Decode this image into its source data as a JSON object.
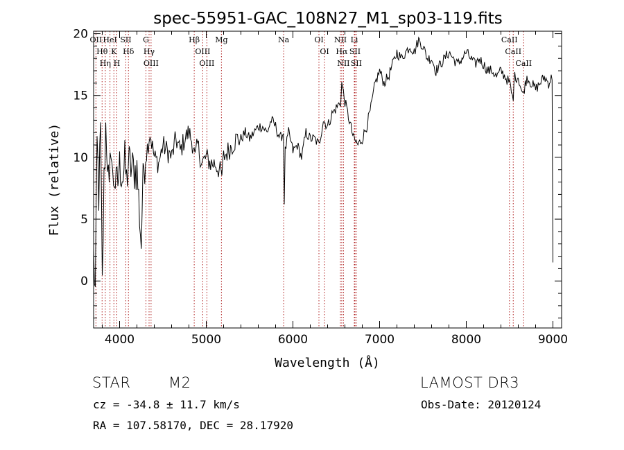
{
  "chart_data": {
    "type": "line",
    "title": "spec-55951-GAC_108N27_M1_sp03-119.fits",
    "xlabel": "Wavelength (Å)",
    "ylabel": "Flux (relative)",
    "xlim": [
      3700,
      9100
    ],
    "ylim": [
      -3.8,
      20.2
    ],
    "xticks": [
      4000,
      5000,
      6000,
      7000,
      8000,
      9000
    ],
    "yticks": [
      0,
      5,
      10,
      15,
      20
    ],
    "series": [
      {
        "name": "spectrum",
        "x": [
          3700,
          3720,
          3740,
          3760,
          3780,
          3800,
          3820,
          3840,
          3860,
          3880,
          3900,
          3920,
          3940,
          3960,
          3980,
          4000,
          4020,
          4040,
          4060,
          4080,
          4100,
          4150,
          4200,
          4250,
          4260,
          4280,
          4300,
          4350,
          4400,
          4450,
          4500,
          4550,
          4600,
          4650,
          4700,
          4750,
          4800,
          4850,
          4870,
          4900,
          4950,
          5000,
          5050,
          5100,
          5150,
          5180,
          5200,
          5250,
          5300,
          5350,
          5400,
          5450,
          5500,
          5550,
          5600,
          5650,
          5700,
          5750,
          5800,
          5850,
          5890,
          5900,
          5910,
          5950,
          6000,
          6050,
          6100,
          6150,
          6200,
          6250,
          6300,
          6350,
          6400,
          6450,
          6500,
          6550,
          6563,
          6600,
          6650,
          6700,
          6750,
          6800,
          6850,
          6900,
          6950,
          7000,
          7050,
          7100,
          7150,
          7200,
          7250,
          7300,
          7350,
          7400,
          7450,
          7500,
          7550,
          7600,
          7650,
          7700,
          7750,
          7800,
          7850,
          7900,
          7950,
          8000,
          8050,
          8100,
          8150,
          8200,
          8250,
          8300,
          8350,
          8400,
          8450,
          8500,
          8542,
          8550,
          8600,
          8650,
          8700,
          8750,
          8800,
          8850,
          8900,
          8950,
          8990,
          9000
        ],
        "y": [
          2.0,
          -1.0,
          11.0,
          7.0,
          12.0,
          -0.5,
          8.0,
          12.5,
          10.0,
          6.5,
          11.5,
          8.0,
          8.5,
          7.5,
          8.0,
          9.2,
          9.0,
          8.5,
          9.5,
          8.0,
          9.5,
          9.0,
          9.0,
          3.0,
          6.0,
          9.5,
          10.0,
          12.0,
          10.0,
          9.5,
          11.0,
          10.5,
          10.0,
          11.5,
          10.5,
          11.5,
          12.0,
          11.0,
          9.8,
          11.0,
          9.5,
          10.0,
          9.5,
          9.5,
          9.0,
          8.5,
          10.0,
          10.5,
          11.0,
          11.5,
          11.5,
          12.0,
          11.5,
          12.0,
          12.5,
          12.5,
          12.0,
          13.0,
          12.5,
          11.5,
          12.0,
          6.5,
          10.5,
          12.0,
          10.5,
          11.0,
          10.0,
          12.0,
          11.5,
          11.5,
          11.0,
          13.0,
          12.5,
          13.5,
          14.0,
          14.5,
          16.0,
          14.5,
          13.0,
          11.5,
          11.0,
          11.5,
          12.5,
          14.0,
          16.0,
          17.0,
          16.0,
          16.5,
          17.5,
          18.5,
          18.0,
          18.5,
          19.0,
          18.5,
          19.5,
          19.0,
          18.0,
          18.0,
          17.0,
          17.5,
          18.0,
          18.5,
          18.0,
          17.5,
          18.0,
          18.5,
          18.0,
          17.5,
          18.0,
          17.5,
          17.0,
          17.0,
          16.5,
          17.0,
          16.5,
          16.0,
          14.5,
          16.5,
          16.5,
          15.0,
          16.5,
          16.0,
          15.5,
          16.0,
          16.5,
          16.0,
          16.5,
          1.5
        ]
      }
    ],
    "lines": [
      {
        "name": "OII",
        "wavelength": 3727
      },
      {
        "name": "Hθ",
        "wavelength": 3798
      },
      {
        "name": "Hη",
        "wavelength": 3835
      },
      {
        "name": "HeI",
        "wavelength": 3889
      },
      {
        "name": "K",
        "wavelength": 3934
      },
      {
        "name": "H",
        "wavelength": 3968
      },
      {
        "name": "SII",
        "wavelength": 4072
      },
      {
        "name": "Hδ",
        "wavelength": 4102
      },
      {
        "name": "G",
        "wavelength": 4304
      },
      {
        "name": "Hγ",
        "wavelength": 4340
      },
      {
        "name": "OIII",
        "wavelength": 4363
      },
      {
        "name": "Hβ",
        "wavelength": 4861
      },
      {
        "name": "OIII",
        "wavelength": 4959
      },
      {
        "name": "OIII",
        "wavelength": 5007
      },
      {
        "name": "Mg",
        "wavelength": 5175
      },
      {
        "name": "Na",
        "wavelength": 5893
      },
      {
        "name": "OI",
        "wavelength": 6300
      },
      {
        "name": "OI",
        "wavelength": 6364
      },
      {
        "name": "NII",
        "wavelength": 6548
      },
      {
        "name": "Hα",
        "wavelength": 6563
      },
      {
        "name": "NII",
        "wavelength": 6583
      },
      {
        "name": "Li",
        "wavelength": 6708
      },
      {
        "name": "SII",
        "wavelength": 6716
      },
      {
        "name": "SII",
        "wavelength": 6731
      },
      {
        "name": "CaII",
        "wavelength": 8498
      },
      {
        "name": "CaII",
        "wavelength": 8542
      },
      {
        "name": "CaII",
        "wavelength": 8662
      }
    ]
  },
  "info": {
    "object_class": "STAR",
    "subclass": "M2",
    "survey": "LAMOST DR3",
    "redshift": "cz = -34.8 ± 11.7 km/s",
    "obs_date": "Obs-Date: 20120124",
    "coords": "RA = 107.58170, DEC =  28.17920"
  },
  "colors": {
    "spectrum": "#000000",
    "line_markers": "#b02020",
    "axes": "#000000"
  }
}
